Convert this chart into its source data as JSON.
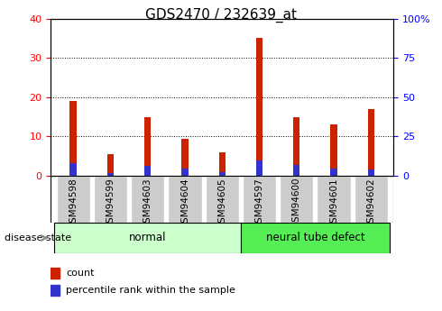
{
  "title": "GDS2470 / 232639_at",
  "categories": [
    "GSM94598",
    "GSM94599",
    "GSM94603",
    "GSM94604",
    "GSM94605",
    "GSM94597",
    "GSM94600",
    "GSM94601",
    "GSM94602"
  ],
  "count_values": [
    19,
    5.5,
    15,
    9.5,
    6,
    35,
    15,
    13,
    17
  ],
  "percentile_values": [
    8,
    1.5,
    6.5,
    4.5,
    2.5,
    10,
    7,
    4.5,
    4
  ],
  "bar_color_red": "#cc2200",
  "bar_color_blue": "#3333cc",
  "bar_width": 0.18,
  "ylim_left": [
    0,
    40
  ],
  "ylim_right": [
    0,
    100
  ],
  "yticks_left": [
    0,
    10,
    20,
    30,
    40
  ],
  "yticks_right": [
    0,
    25,
    50,
    75,
    100
  ],
  "ytick_labels_right": [
    "0",
    "25",
    "50",
    "75",
    "100%"
  ],
  "normal_group": {
    "start": 0,
    "end": 4,
    "label": "normal",
    "color": "#ccffcc"
  },
  "defect_group": {
    "start": 5,
    "end": 8,
    "label": "neural tube defect",
    "color": "#55ee55"
  },
  "disease_state_label": "disease state",
  "legend_count": "count",
  "legend_percentile": "percentile rank within the sample",
  "title_fontsize": 11,
  "tick_fontsize": 8,
  "group_fontsize": 8.5,
  "legend_fontsize": 8
}
